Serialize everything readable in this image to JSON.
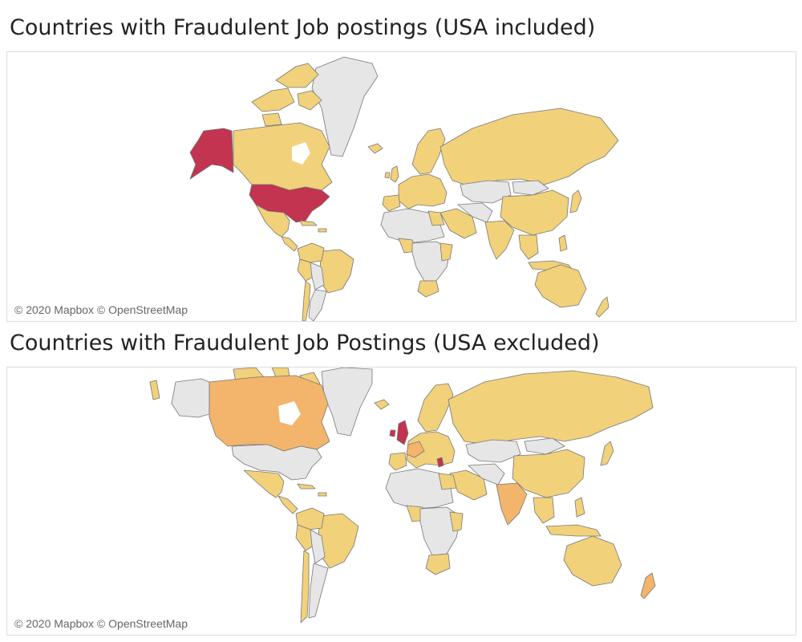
{
  "maps": [
    {
      "title": "Countries with Fraudulent Job postings (USA included)",
      "attribution": "© 2020 Mapbox © OpenStreetMap",
      "highlighted": [
        "USA"
      ]
    },
    {
      "title": "Countries with Fraudulent Job Postings (USA excluded)",
      "attribution": "© 2020 Mapbox © OpenStreetMap",
      "highlighted": [
        "United Kingdom"
      ]
    }
  ],
  "colors": {
    "no_data": "#e6e6e6",
    "low": "#f2d17b",
    "medium": "#f3b46c",
    "high": "#c2344f"
  }
}
